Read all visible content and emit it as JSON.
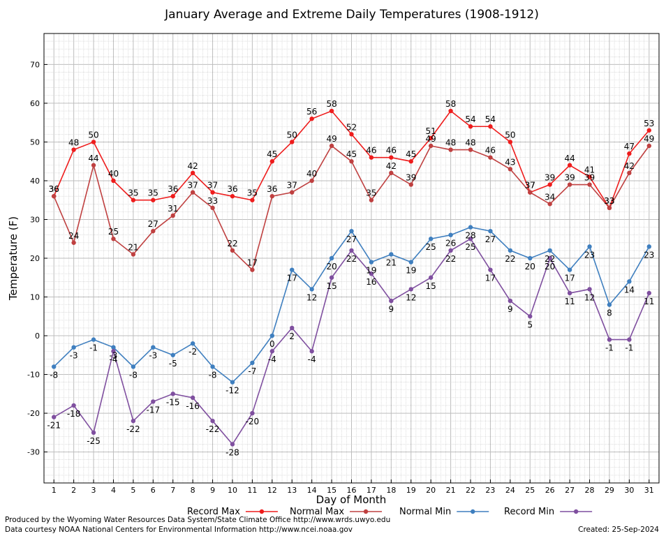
{
  "chart_data": {
    "type": "line",
    "title": "January Average and Extreme Daily Temperatures (1908-1912)",
    "xlabel": "Day of Month",
    "ylabel": "Temperature (F)",
    "x": [
      1,
      2,
      3,
      4,
      5,
      6,
      7,
      8,
      9,
      10,
      11,
      12,
      13,
      14,
      15,
      16,
      17,
      18,
      19,
      20,
      21,
      22,
      23,
      24,
      25,
      26,
      27,
      28,
      29,
      30,
      31
    ],
    "xlim": [
      0.5,
      31.5
    ],
    "ylim": [
      -38,
      78
    ],
    "yticks": [
      -30,
      -20,
      -10,
      0,
      10,
      20,
      30,
      40,
      50,
      60,
      70
    ],
    "grid": true,
    "legend_position": "bottom",
    "series": [
      {
        "name": "Record Max",
        "color": "#ee1c1c",
        "values": [
          36,
          48,
          50,
          40,
          35,
          35,
          36,
          42,
          37,
          36,
          35,
          45,
          50,
          56,
          58,
          52,
          46,
          46,
          45,
          51,
          58,
          54,
          54,
          50,
          37,
          39,
          44,
          41,
          33,
          47,
          53
        ]
      },
      {
        "name": "Normal Max",
        "color": "#bf4040",
        "values": [
          36,
          24,
          44,
          25,
          21,
          27,
          31,
          37,
          33,
          22,
          17,
          36,
          37,
          40,
          49,
          45,
          35,
          42,
          39,
          49,
          48,
          48,
          46,
          43,
          37,
          34,
          39,
          39,
          33,
          42,
          49
        ]
      },
      {
        "name": "Normal Min",
        "color": "#3f7fbf",
        "values": [
          -8,
          -3,
          -1,
          -3,
          -8,
          -3,
          -5,
          -2,
          -8,
          -12,
          -7,
          0,
          17,
          12,
          20,
          27,
          19,
          21,
          19,
          25,
          26,
          28,
          27,
          22,
          20,
          22,
          17,
          23,
          8,
          14,
          23
        ]
      },
      {
        "name": "Record Min",
        "color": "#7f4f9f",
        "values": [
          -21,
          -18,
          -25,
          -4,
          -22,
          -17,
          -15,
          -16,
          -22,
          -28,
          -20,
          -4,
          2,
          -4,
          15,
          22,
          16,
          9,
          12,
          15,
          22,
          25,
          17,
          9,
          5,
          20,
          11,
          12,
          -1,
          -1,
          11
        ]
      }
    ]
  },
  "footer": {
    "produced_by": "Produced by the Wyoming Water Resources Data System/State Climate Office http://www.wrds.uwyo.edu",
    "courtesy": "Data courtesy NOAA National Centers for Environmental Information http://www.ncei.noaa.gov",
    "created": "Created:  25-Sep-2024"
  }
}
